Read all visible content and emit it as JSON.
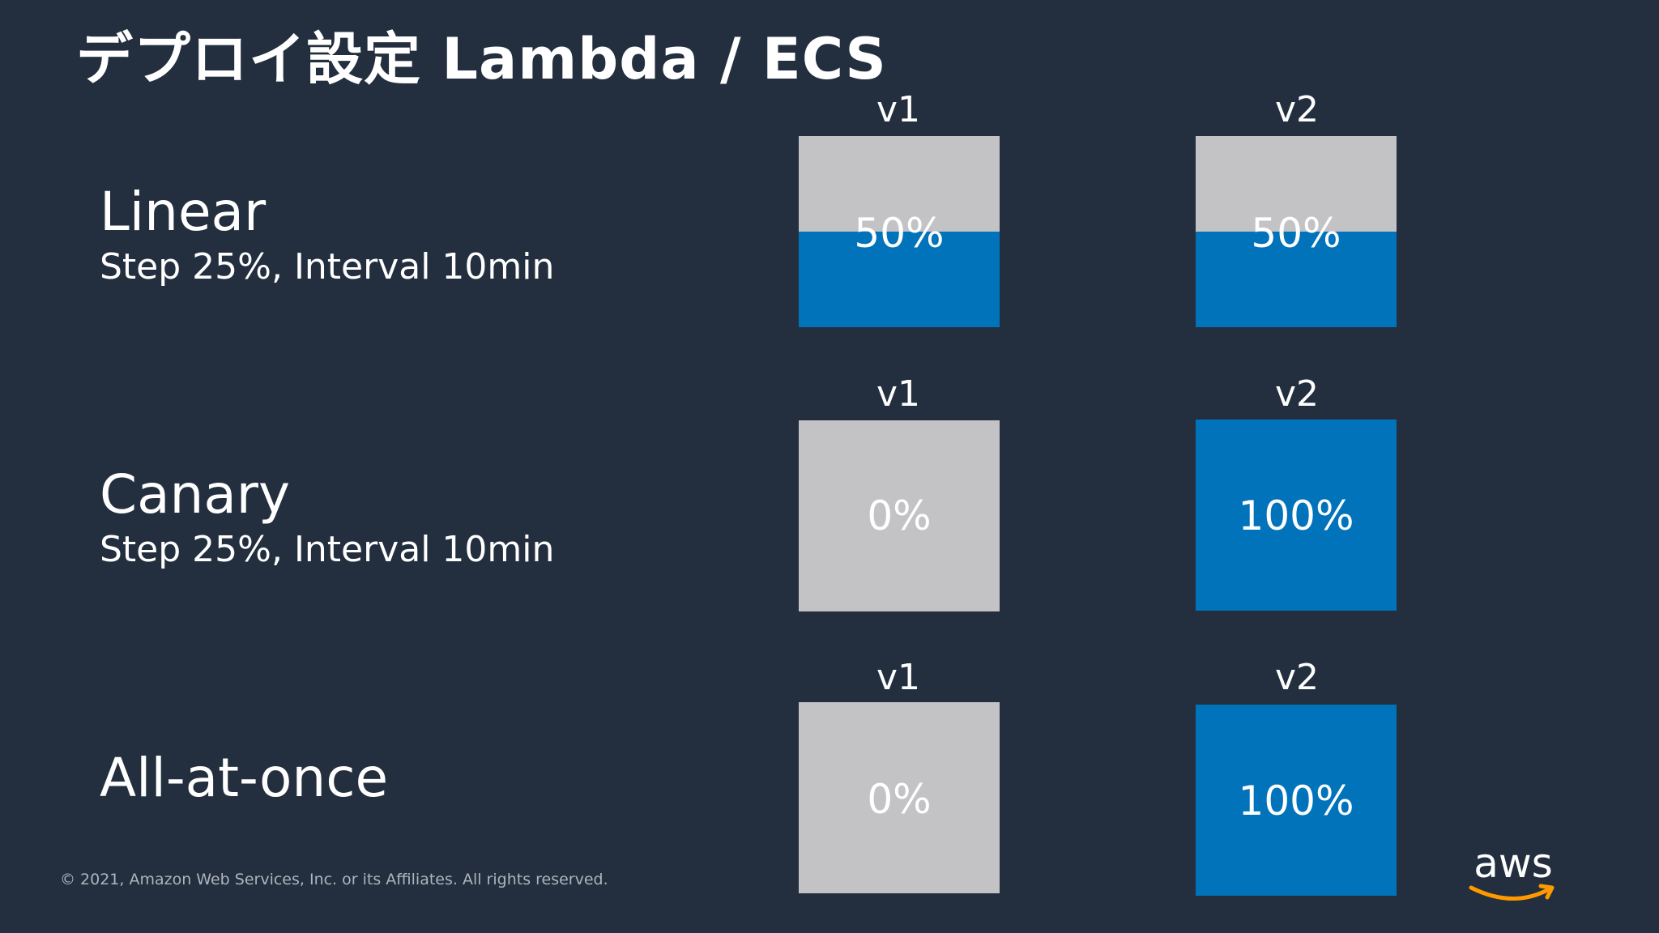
{
  "slide": {
    "title": "デプロイ設定 Lambda / ECS",
    "copyright": "© 2021, Amazon Web Services, Inc. or its Affiliates. All rights reserved.",
    "logo_text": "aws"
  },
  "colors": {
    "background": "#232f3e",
    "old_version_traffic": "#c3c3c5",
    "new_version_traffic": "#0073bb",
    "logo_smile": "#ff9900"
  },
  "strategies": [
    {
      "name": "Linear",
      "detail": "Step 25%, Interval 10min",
      "versions": [
        {
          "label": "v1",
          "percent_text": "50%",
          "fill_fraction": 0.5
        },
        {
          "label": "v2",
          "percent_text": "50%",
          "fill_fraction": 0.5
        }
      ]
    },
    {
      "name": "Canary",
      "detail": "Step 25%, Interval 10min",
      "versions": [
        {
          "label": "v1",
          "percent_text": "0%",
          "fill_fraction": 0
        },
        {
          "label": "v2",
          "percent_text": "100%",
          "fill_fraction": 1
        }
      ]
    },
    {
      "name": "All-at-once",
      "detail": "",
      "versions": [
        {
          "label": "v1",
          "percent_text": "0%",
          "fill_fraction": 0
        },
        {
          "label": "v2",
          "percent_text": "100%",
          "fill_fraction": 1
        }
      ]
    }
  ]
}
